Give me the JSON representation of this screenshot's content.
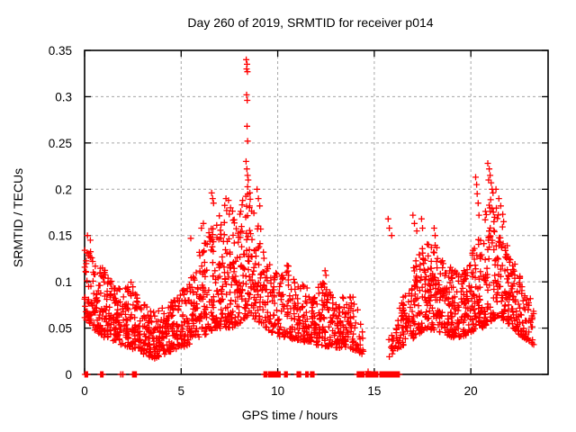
{
  "chart_data": {
    "type": "scatter",
    "title": "Day 260 of 2019, SRMTID for receiver p014",
    "xlabel": "GPS time / hours",
    "ylabel": "SRMTID / TECUs",
    "xlim": [
      0,
      24
    ],
    "ylim": [
      0,
      0.35
    ],
    "xticks": {
      "values": [
        0,
        5,
        10,
        15,
        20
      ],
      "labels": [
        "0",
        "5",
        "10",
        "15",
        "20"
      ]
    },
    "yticks": {
      "values": [
        0,
        0.05,
        0.1,
        0.15,
        0.2,
        0.25,
        0.3,
        0.35
      ],
      "labels": [
        "0",
        "0.05",
        "0.1",
        "0.15",
        "0.2",
        "0.25",
        "0.3",
        "0.35"
      ]
    },
    "grid": true,
    "legend": "none",
    "marker": {
      "shape": "plus",
      "color": "#ff0000",
      "size": 7
    },
    "colors": {
      "background": "#ffffff",
      "border": "#000000",
      "grid": "#a6a6a6",
      "text": "#000000"
    },
    "seed": 2019260,
    "band_envelope": [
      {
        "t": 0.0,
        "lo": 0.06,
        "hi": 0.135,
        "d": 95
      },
      {
        "t": 0.15,
        "lo": 0.055,
        "hi": 0.148,
        "d": 100
      },
      {
        "t": 0.4,
        "lo": 0.05,
        "hi": 0.125,
        "d": 105
      },
      {
        "t": 0.7,
        "lo": 0.045,
        "hi": 0.115,
        "d": 105
      },
      {
        "t": 1.0,
        "lo": 0.04,
        "hi": 0.125,
        "d": 105
      },
      {
        "t": 1.3,
        "lo": 0.038,
        "hi": 0.105,
        "d": 105
      },
      {
        "t": 1.6,
        "lo": 0.035,
        "hi": 0.1,
        "d": 105
      },
      {
        "t": 2.0,
        "lo": 0.03,
        "hi": 0.095,
        "d": 105
      },
      {
        "t": 2.4,
        "lo": 0.028,
        "hi": 0.1,
        "d": 100
      },
      {
        "t": 2.8,
        "lo": 0.025,
        "hi": 0.085,
        "d": 100
      },
      {
        "t": 3.2,
        "lo": 0.02,
        "hi": 0.075,
        "d": 100
      },
      {
        "t": 3.6,
        "lo": 0.017,
        "hi": 0.07,
        "d": 100
      },
      {
        "t": 4.0,
        "lo": 0.02,
        "hi": 0.072,
        "d": 100
      },
      {
        "t": 4.4,
        "lo": 0.024,
        "hi": 0.08,
        "d": 100
      },
      {
        "t": 4.8,
        "lo": 0.028,
        "hi": 0.085,
        "d": 100
      },
      {
        "t": 5.2,
        "lo": 0.03,
        "hi": 0.095,
        "d": 100
      },
      {
        "t": 5.6,
        "lo": 0.035,
        "hi": 0.115,
        "d": 100
      },
      {
        "t": 6.0,
        "lo": 0.04,
        "hi": 0.14,
        "d": 105
      },
      {
        "t": 6.4,
        "lo": 0.045,
        "hi": 0.155,
        "d": 105
      },
      {
        "t": 6.8,
        "lo": 0.05,
        "hi": 0.17,
        "d": 110
      },
      {
        "t": 7.2,
        "lo": 0.05,
        "hi": 0.185,
        "d": 115
      },
      {
        "t": 7.6,
        "lo": 0.05,
        "hi": 0.18,
        "d": 115
      },
      {
        "t": 8.0,
        "lo": 0.055,
        "hi": 0.17,
        "d": 115
      },
      {
        "t": 8.3,
        "lo": 0.06,
        "hi": 0.2,
        "d": 120
      },
      {
        "t": 8.5,
        "lo": 0.065,
        "hi": 0.205,
        "d": 120
      },
      {
        "t": 8.8,
        "lo": 0.06,
        "hi": 0.18,
        "d": 110
      },
      {
        "t": 9.1,
        "lo": 0.055,
        "hi": 0.16,
        "d": 95
      },
      {
        "t": 9.4,
        "lo": 0.05,
        "hi": 0.135,
        "d": 75
      },
      {
        "t": 9.7,
        "lo": 0.045,
        "hi": 0.12,
        "d": 70
      },
      {
        "t": 10.0,
        "lo": 0.04,
        "hi": 0.115,
        "d": 80
      },
      {
        "t": 10.4,
        "lo": 0.04,
        "hi": 0.13,
        "d": 85
      },
      {
        "t": 10.8,
        "lo": 0.038,
        "hi": 0.105,
        "d": 90
      },
      {
        "t": 11.2,
        "lo": 0.035,
        "hi": 0.1,
        "d": 90
      },
      {
        "t": 11.6,
        "lo": 0.035,
        "hi": 0.095,
        "d": 95
      },
      {
        "t": 12.0,
        "lo": 0.032,
        "hi": 0.095,
        "d": 100
      },
      {
        "t": 12.4,
        "lo": 0.03,
        "hi": 0.1,
        "d": 100
      },
      {
        "t": 12.8,
        "lo": 0.03,
        "hi": 0.085,
        "d": 100
      },
      {
        "t": 13.2,
        "lo": 0.028,
        "hi": 0.08,
        "d": 95
      },
      {
        "t": 13.6,
        "lo": 0.03,
        "hi": 0.09,
        "d": 90
      },
      {
        "t": 14.0,
        "lo": 0.025,
        "hi": 0.085,
        "d": 75
      },
      {
        "t": 14.3,
        "lo": 0.02,
        "hi": 0.055,
        "d": 40
      },
      {
        "t": 14.5,
        "lo": 0.02,
        "hi": 0.04,
        "d": 6
      },
      {
        "t": 14.7,
        "lo": 0.0,
        "hi": 0.0,
        "d": 0
      },
      {
        "t": 15.6,
        "lo": 0.0,
        "hi": 0.0,
        "d": 0
      },
      {
        "t": 15.8,
        "lo": 0.02,
        "hi": 0.05,
        "d": 18
      },
      {
        "t": 16.1,
        "lo": 0.025,
        "hi": 0.06,
        "d": 50
      },
      {
        "t": 16.4,
        "lo": 0.03,
        "hi": 0.08,
        "d": 80
      },
      {
        "t": 16.8,
        "lo": 0.035,
        "hi": 0.1,
        "d": 95
      },
      {
        "t": 17.1,
        "lo": 0.04,
        "hi": 0.125,
        "d": 100
      },
      {
        "t": 17.4,
        "lo": 0.045,
        "hi": 0.135,
        "d": 105
      },
      {
        "t": 17.8,
        "lo": 0.05,
        "hi": 0.145,
        "d": 110
      },
      {
        "t": 18.2,
        "lo": 0.045,
        "hi": 0.14,
        "d": 110
      },
      {
        "t": 18.6,
        "lo": 0.045,
        "hi": 0.125,
        "d": 110
      },
      {
        "t": 19.0,
        "lo": 0.04,
        "hi": 0.115,
        "d": 110
      },
      {
        "t": 19.4,
        "lo": 0.04,
        "hi": 0.11,
        "d": 110
      },
      {
        "t": 19.8,
        "lo": 0.042,
        "hi": 0.115,
        "d": 110
      },
      {
        "t": 20.2,
        "lo": 0.048,
        "hi": 0.14,
        "d": 110
      },
      {
        "t": 20.6,
        "lo": 0.05,
        "hi": 0.16,
        "d": 110
      },
      {
        "t": 20.9,
        "lo": 0.055,
        "hi": 0.195,
        "d": 110
      },
      {
        "t": 21.2,
        "lo": 0.06,
        "hi": 0.19,
        "d": 110
      },
      {
        "t": 21.5,
        "lo": 0.06,
        "hi": 0.17,
        "d": 110
      },
      {
        "t": 21.8,
        "lo": 0.055,
        "hi": 0.15,
        "d": 110
      },
      {
        "t": 22.1,
        "lo": 0.05,
        "hi": 0.13,
        "d": 105
      },
      {
        "t": 22.4,
        "lo": 0.045,
        "hi": 0.115,
        "d": 100
      },
      {
        "t": 22.7,
        "lo": 0.04,
        "hi": 0.1,
        "d": 90
      },
      {
        "t": 23.0,
        "lo": 0.035,
        "hi": 0.09,
        "d": 75
      },
      {
        "t": 23.3,
        "lo": 0.03,
        "hi": 0.075,
        "d": 35
      }
    ],
    "outliers": [
      [
        0.15,
        0.15
      ],
      [
        0.3,
        0.145
      ],
      [
        5.5,
        0.147
      ],
      [
        6.05,
        0.158
      ],
      [
        6.15,
        0.163
      ],
      [
        6.58,
        0.196
      ],
      [
        6.63,
        0.19
      ],
      [
        6.68,
        0.185
      ],
      [
        7.32,
        0.19
      ],
      [
        7.45,
        0.188
      ],
      [
        8.37,
        0.34
      ],
      [
        8.41,
        0.335
      ],
      [
        8.39,
        0.33
      ],
      [
        8.43,
        0.327
      ],
      [
        8.39,
        0.302
      ],
      [
        8.42,
        0.296
      ],
      [
        8.41,
        0.268
      ],
      [
        8.44,
        0.252
      ],
      [
        8.36,
        0.23
      ],
      [
        8.4,
        0.222
      ],
      [
        8.44,
        0.215
      ],
      [
        8.47,
        0.21
      ],
      [
        8.93,
        0.2
      ],
      [
        9.0,
        0.19
      ],
      [
        9.07,
        0.182
      ],
      [
        12.45,
        0.112
      ],
      [
        12.5,
        0.107
      ],
      [
        15.72,
        0.168
      ],
      [
        15.78,
        0.158
      ],
      [
        15.9,
        0.15
      ],
      [
        17.0,
        0.172
      ],
      [
        17.08,
        0.163
      ],
      [
        17.2,
        0.155
      ],
      [
        17.45,
        0.168
      ],
      [
        17.5,
        0.158
      ],
      [
        18.1,
        0.158
      ],
      [
        18.15,
        0.15
      ],
      [
        20.25,
        0.213
      ],
      [
        20.3,
        0.205
      ],
      [
        20.33,
        0.195
      ],
      [
        20.38,
        0.185
      ],
      [
        20.42,
        0.172
      ],
      [
        20.88,
        0.228
      ],
      [
        20.92,
        0.21
      ],
      [
        20.95,
        0.222
      ],
      [
        21.0,
        0.215
      ],
      [
        21.05,
        0.207
      ],
      [
        21.1,
        0.2
      ],
      [
        21.15,
        0.196
      ],
      [
        21.3,
        0.2
      ],
      [
        21.45,
        0.19
      ],
      [
        21.55,
        0.182
      ],
      [
        21.65,
        0.173
      ],
      [
        21.7,
        0.165
      ]
    ],
    "zero_clusters": [
      [
        0.02,
        0.18,
        8
      ],
      [
        0.82,
        0.95,
        6
      ],
      [
        1.86,
        1.88,
        2
      ],
      [
        1.97,
        1.99,
        2
      ],
      [
        2.46,
        2.7,
        9
      ],
      [
        9.27,
        9.45,
        7
      ],
      [
        9.5,
        10.15,
        26
      ],
      [
        10.35,
        10.5,
        6
      ],
      [
        11.0,
        11.2,
        8
      ],
      [
        11.45,
        11.6,
        6
      ],
      [
        11.68,
        11.9,
        8
      ],
      [
        14.1,
        14.5,
        15
      ],
      [
        14.55,
        15.2,
        24
      ],
      [
        15.28,
        15.45,
        7
      ],
      [
        15.5,
        15.66,
        6
      ],
      [
        15.7,
        16.3,
        24
      ]
    ]
  }
}
